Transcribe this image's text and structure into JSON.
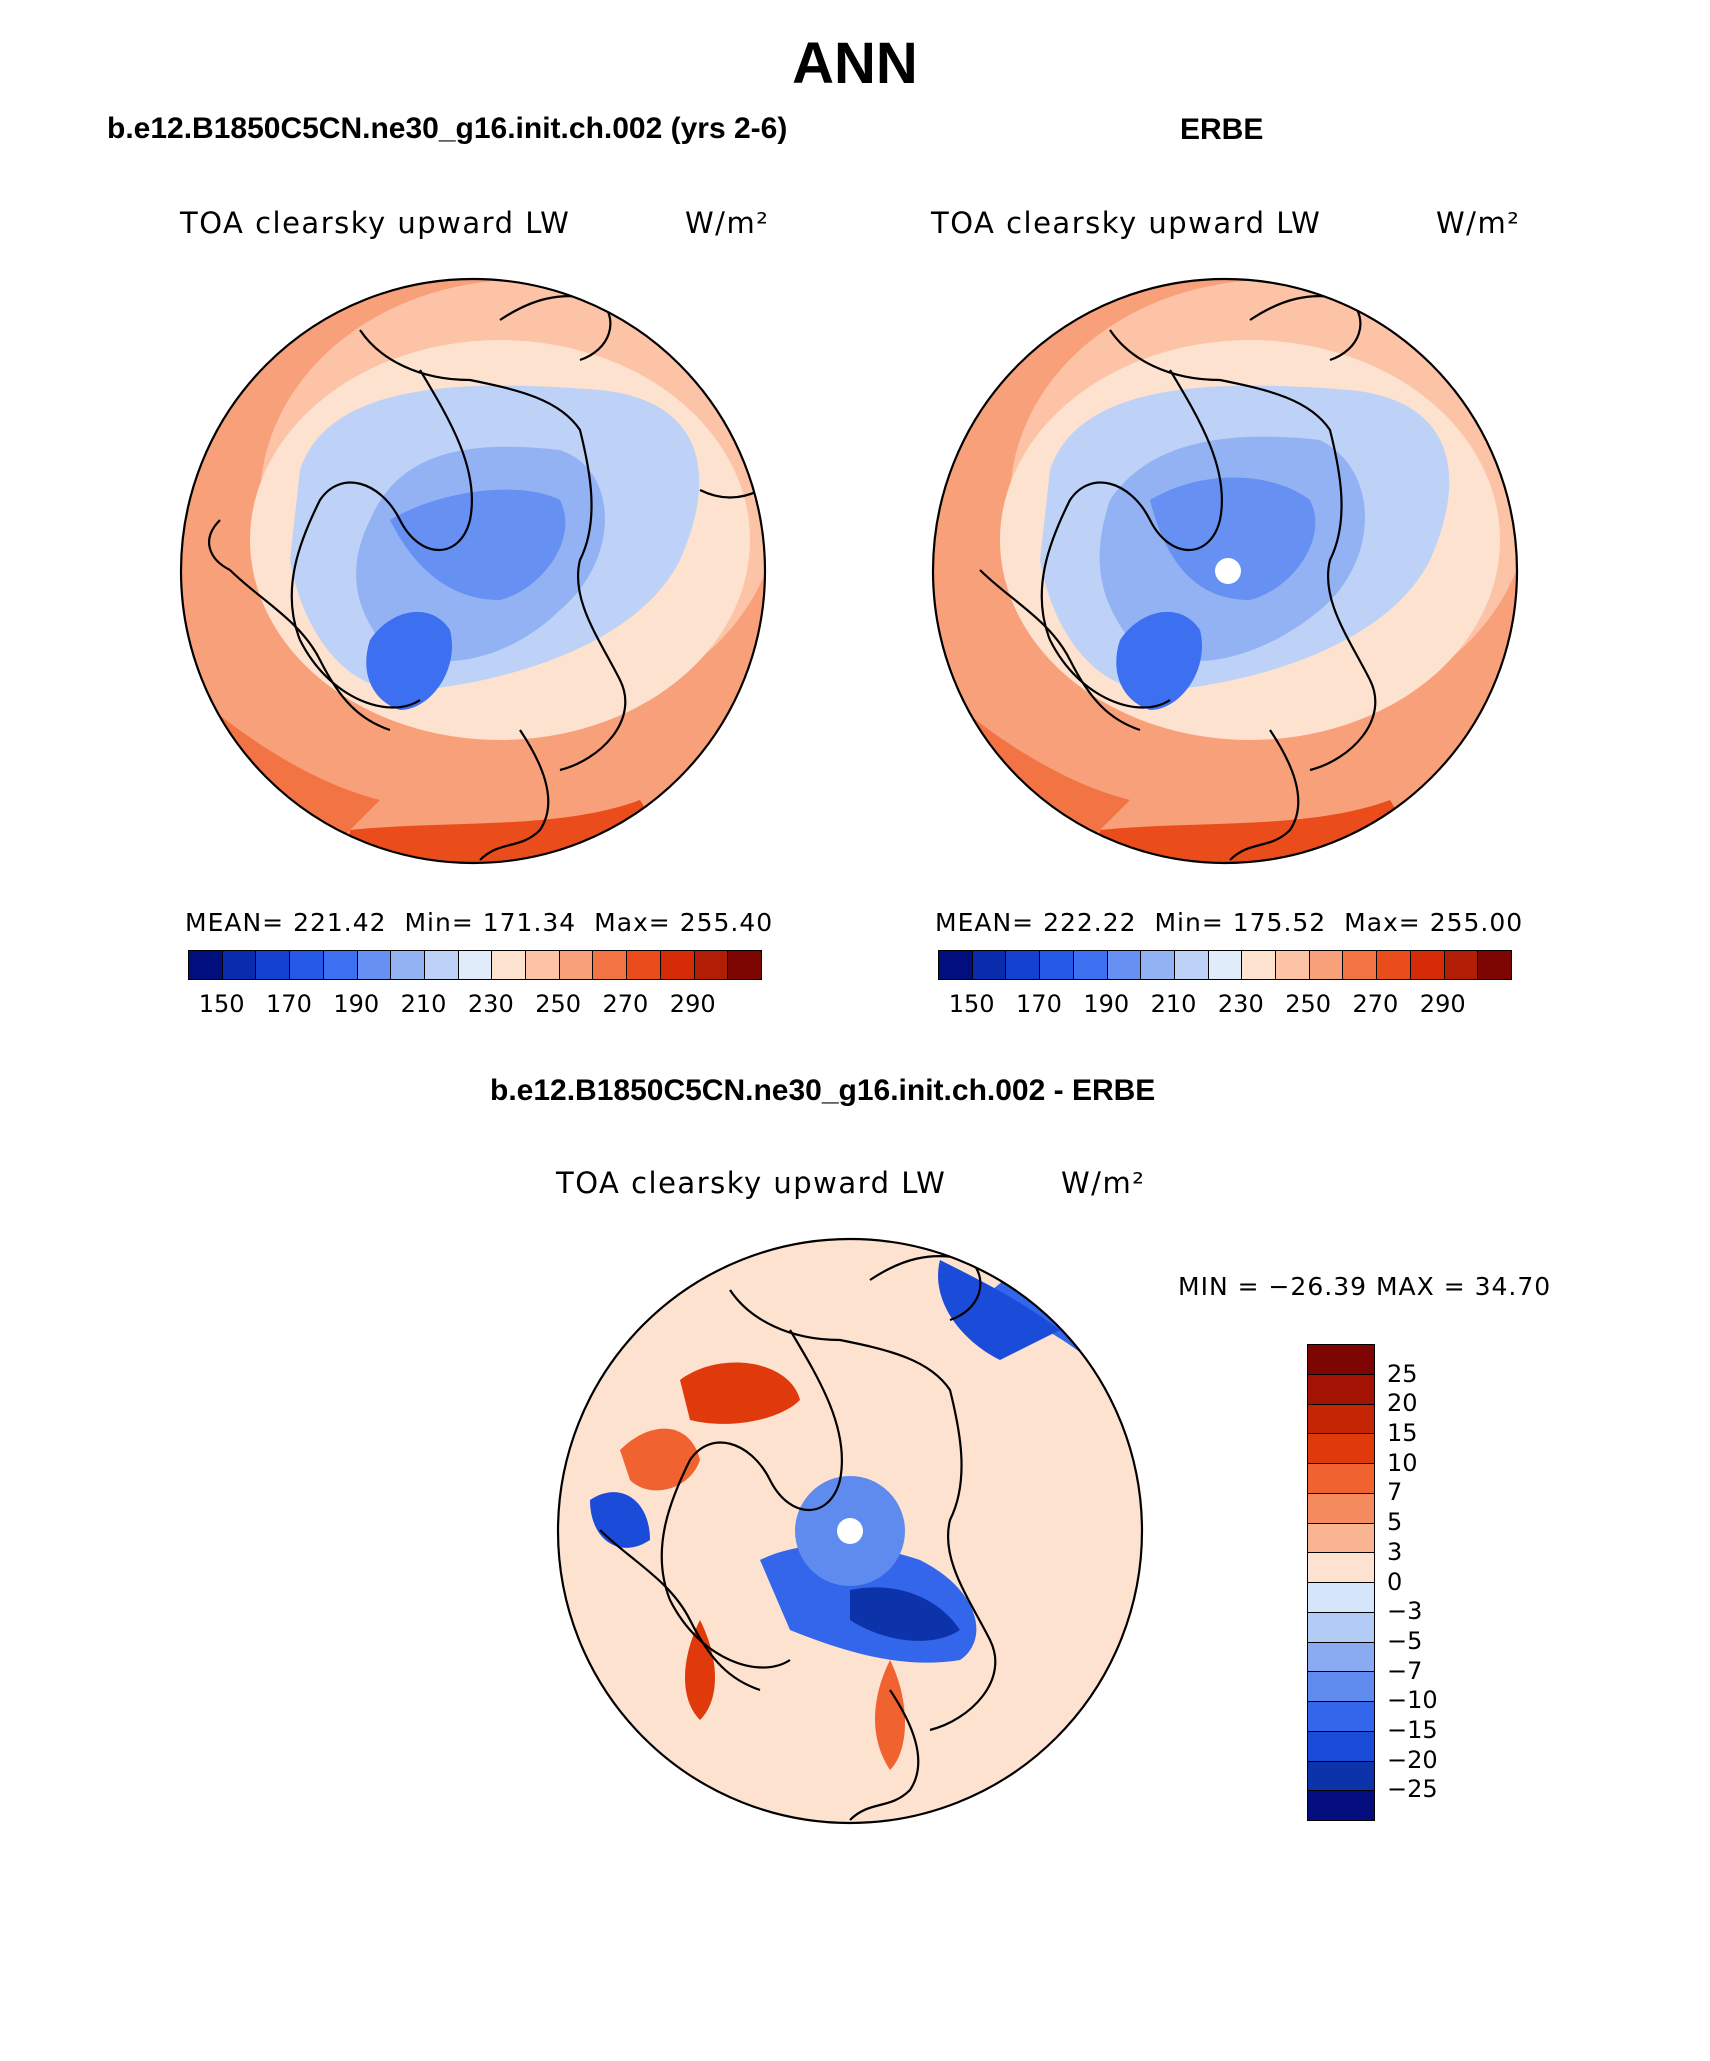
{
  "title": "ANN",
  "panels": {
    "model": {
      "title": "b.e12.B1850C5CN.ne30_g16.init.ch.002 (yrs 2-6)",
      "variable": "TOA clearsky upward LW",
      "units": "W/m²",
      "stats": {
        "mean_label": "MEAN=",
        "mean": "221.42",
        "min_label": "Min=",
        "min": "171.34",
        "max_label": "Max=",
        "max": "255.40"
      }
    },
    "obs": {
      "title": "ERBE",
      "variable": "TOA clearsky upward LW",
      "units": "W/m²",
      "stats": {
        "mean_label": "MEAN=",
        "mean": "222.22",
        "min_label": "Min=",
        "min": "175.52",
        "max_label": "Max=",
        "max": "255.00"
      }
    },
    "diff": {
      "title": "b.e12.B1850C5CN.ne30_g16.init.ch.002 - ERBE",
      "variable": "TOA clearsky upward LW",
      "units": "W/m²",
      "minmax": "MIN = −26.39 MAX =  34.70"
    }
  },
  "abs_colorbar": {
    "colors": [
      "#000e7e",
      "#0a2bab",
      "#1440cf",
      "#2458e6",
      "#3d70f0",
      "#6690f2",
      "#93b2f4",
      "#bed2f7",
      "#e1ecfa",
      "#fde2cf",
      "#fcc3a6",
      "#f8a07a",
      "#f27445",
      "#ea4c1c",
      "#d52b08",
      "#b21e05",
      "#7d0602"
    ],
    "ticks": [
      "150",
      "170",
      "190",
      "210",
      "230",
      "250",
      "270",
      "290"
    ]
  },
  "diff_colorbar": {
    "colors": [
      "#7d0602",
      "#a21303",
      "#c42505",
      "#e03a0c",
      "#f0622f",
      "#f58a5f",
      "#f9b592",
      "#fde2cf",
      "#d6e6fa",
      "#b2ccf6",
      "#8aaaf2",
      "#5f8bef",
      "#3366eb",
      "#1b4bd9",
      "#0d33ab",
      "#040d7e"
    ],
    "ticks": [
      "25",
      "20",
      "15",
      "10",
      "7",
      "5",
      "3",
      "0",
      "−3",
      "−5",
      "−7",
      "−10",
      "−15",
      "−20",
      "−25"
    ]
  }
}
